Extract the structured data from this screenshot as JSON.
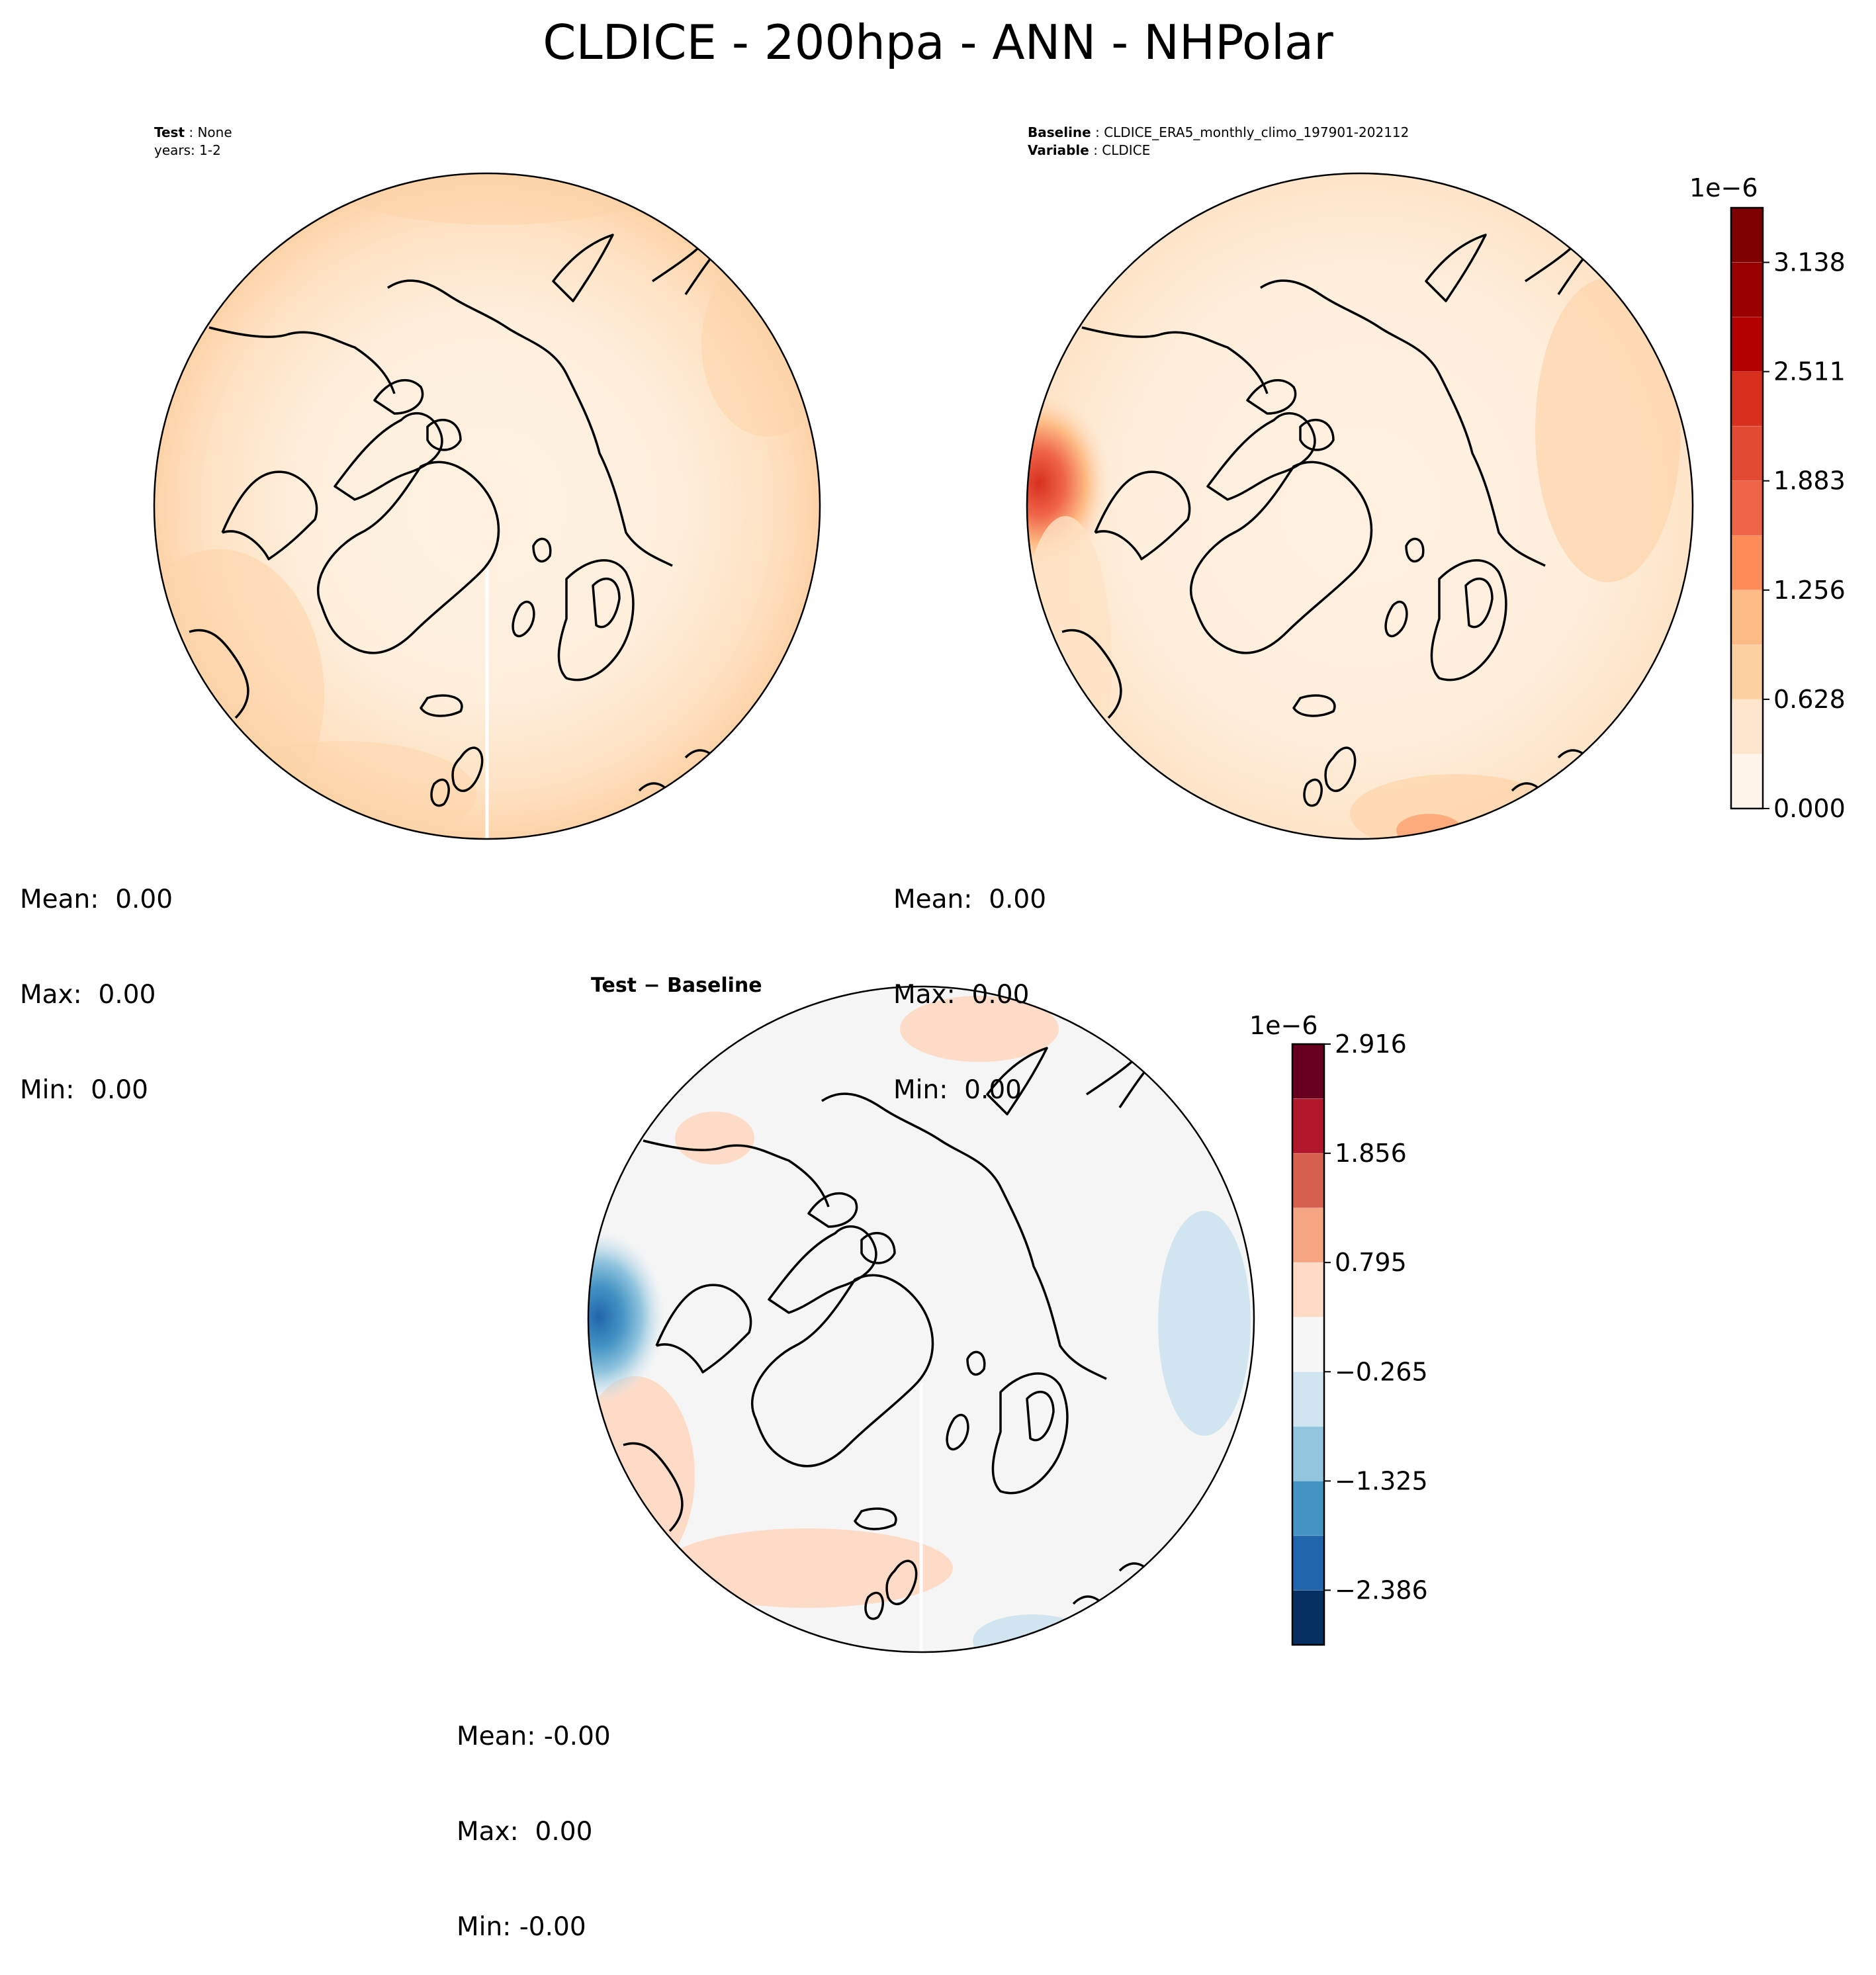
{
  "figure": {
    "title": "CLDICE - 200hpa - ANN - NHPolar"
  },
  "panels": {
    "test": {
      "label_bold": "Test",
      "label_value": "None",
      "line2": "years: 1-2",
      "stats": {
        "mean": "Mean:  0.00",
        "max": "Max:  0.00",
        "min": "Min:  0.00"
      }
    },
    "baseline": {
      "label1_bold": "Baseline",
      "label1_value": "CLDICE_ERA5_monthly_climo_197901-202112",
      "label2_bold": "Variable",
      "label2_value": "CLDICE",
      "stats": {
        "mean": "Mean:  0.00",
        "max": "Max:  0.00",
        "min": "Min:  0.00"
      }
    },
    "diff": {
      "title": "Test − Baseline",
      "stats": {
        "mean": "Mean: -0.00",
        "max": "Max:  0.00",
        "min": "Min: -0.00"
      }
    }
  },
  "colorbars": {
    "main": {
      "exponent": "1e−6",
      "ticks": [
        "0.000",
        "0.628",
        "1.256",
        "1.883",
        "2.511",
        "3.138"
      ],
      "colors": [
        "#fff5eb",
        "#fee6ce",
        "#fdd0a2",
        "#fdbb84",
        "#fc8d59",
        "#ef6548",
        "#e34a33",
        "#d7301f",
        "#b30000",
        "#990000",
        "#7f0000"
      ]
    },
    "diff": {
      "exponent": "1e−6",
      "ticks": [
        "2.916",
        "1.856",
        "0.795",
        "−0.265",
        "−1.325",
        "−2.386"
      ],
      "colors": [
        "#67001f",
        "#b2182b",
        "#d6604d",
        "#f4a582",
        "#fddbc7",
        "#f7f7f7",
        "#d1e5f0",
        "#92c5de",
        "#4393c3",
        "#2166ac",
        "#053061"
      ]
    }
  }
}
